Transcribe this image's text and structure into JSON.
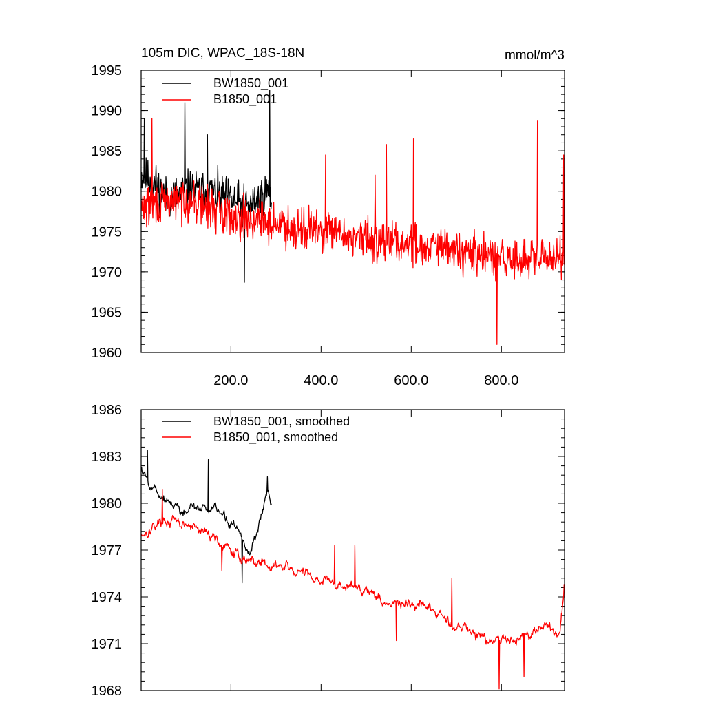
{
  "chart_data": [
    {
      "type": "line",
      "title": "105m DIC, WPAC_18S-18N",
      "units": "mmol/m^3",
      "xlim": [
        1,
        940
      ],
      "ylim": [
        1960,
        1995
      ],
      "x_ticks": [
        200,
        400,
        600,
        800
      ],
      "x_tick_labels": [
        "200.0",
        "400.0",
        "600.0",
        "800.0"
      ],
      "y_ticks": [
        1960,
        1965,
        1970,
        1975,
        1980,
        1985,
        1990,
        1995
      ],
      "y_tick_labels": [
        "1960",
        "1965",
        "1970",
        "1975",
        "1980",
        "1985",
        "1990",
        "1995"
      ],
      "series": [
        {
          "name": "BW1850_001",
          "color": "#000000",
          "x_range": [
            1,
            290
          ],
          "anchors": [
            [
              1,
              1982
            ],
            [
              30,
              1981
            ],
            [
              60,
              1979
            ],
            [
              100,
              1980
            ],
            [
              150,
              1980
            ],
            [
              200,
              1979
            ],
            [
              240,
              1978
            ],
            [
              280,
              1980
            ],
            [
              290,
              1979
            ]
          ],
          "amplitude": 3.8,
          "seed": 11,
          "peaks": [
            [
              8,
              1989
            ],
            [
              98,
              1991
            ],
            [
              148,
              1987
            ],
            [
              230,
              1968.7
            ],
            [
              286,
              1992.5
            ]
          ]
        },
        {
          "name": "B1850_001",
          "color": "#ff0000",
          "x_range": [
            1,
            940
          ],
          "anchors": [
            [
              1,
              1978
            ],
            [
              100,
              1979
            ],
            [
              200,
              1977
            ],
            [
              300,
              1976
            ],
            [
              400,
              1975
            ],
            [
              500,
              1974
            ],
            [
              600,
              1973.5
            ],
            [
              700,
              1972.5
            ],
            [
              800,
              1971.5
            ],
            [
              900,
              1971.5
            ],
            [
              940,
              1972.5
            ]
          ],
          "amplitude": 3.8,
          "seed": 29,
          "peaks": [
            [
              25,
              1989
            ],
            [
              410,
              1984.5
            ],
            [
              520,
              1982
            ],
            [
              545,
              1985.8
            ],
            [
              605,
              1986.5
            ],
            [
              790,
              1961
            ],
            [
              880,
              1988.7
            ],
            [
              938,
              1984.5
            ]
          ]
        }
      ]
    },
    {
      "type": "line",
      "title": "",
      "xlim": [
        1,
        940
      ],
      "ylim": [
        1968,
        1986
      ],
      "x_ticks": [
        200,
        400,
        600,
        800
      ],
      "x_tick_labels": [],
      "y_ticks": [
        1968,
        1971,
        1974,
        1977,
        1980,
        1983,
        1986
      ],
      "y_tick_labels": [
        "1968",
        "1971",
        "1974",
        "1977",
        "1980",
        "1983",
        "1986"
      ],
      "series": [
        {
          "name": "BW1850_001, smoothed",
          "color": "#000000",
          "x_range": [
            1,
            290
          ],
          "anchors": [
            [
              1,
              1982.3
            ],
            [
              15,
              1981.5
            ],
            [
              40,
              1980.8
            ],
            [
              70,
              1980
            ],
            [
              100,
              1979.4
            ],
            [
              140,
              1979.8
            ],
            [
              180,
              1979.2
            ],
            [
              220,
              1978.3
            ],
            [
              240,
              1976.8
            ],
            [
              260,
              1978.5
            ],
            [
              280,
              1980.5
            ],
            [
              290,
              1979.7
            ]
          ],
          "amplitude": 0.8,
          "seed": 5,
          "peaks": [
            [
              15,
              1983.4
            ],
            [
              150,
              1982.8
            ],
            [
              225,
              1974.9
            ],
            [
              281,
              1981.7
            ]
          ]
        },
        {
          "name": "B1850_001, smoothed",
          "color": "#ff0000",
          "x_range": [
            1,
            940
          ],
          "anchors": [
            [
              1,
              1978
            ],
            [
              50,
              1979
            ],
            [
              100,
              1978.5
            ],
            [
              160,
              1978
            ],
            [
              200,
              1976.8
            ],
            [
              250,
              1976.3
            ],
            [
              300,
              1976
            ],
            [
              350,
              1975.5
            ],
            [
              400,
              1975.2
            ],
            [
              450,
              1974.6
            ],
            [
              500,
              1974.6
            ],
            [
              550,
              1973.5
            ],
            [
              600,
              1973.5
            ],
            [
              650,
              1973
            ],
            [
              700,
              1972.2
            ],
            [
              750,
              1971.6
            ],
            [
              800,
              1971.2
            ],
            [
              850,
              1971.6
            ],
            [
              900,
              1972.2
            ],
            [
              930,
              1971.5
            ],
            [
              940,
              1974.7
            ]
          ],
          "amplitude": 0.8,
          "seed": 17,
          "peaks": [
            [
              48,
              1980.9
            ],
            [
              180,
              1975.7
            ],
            [
              430,
              1977.3
            ],
            [
              475,
              1977.3
            ],
            [
              567,
              1971.2
            ],
            [
              690,
              1975.2
            ],
            [
              795,
              1968.1
            ],
            [
              850,
              1968.9
            ],
            [
              939,
              1974.8
            ]
          ]
        }
      ]
    }
  ]
}
